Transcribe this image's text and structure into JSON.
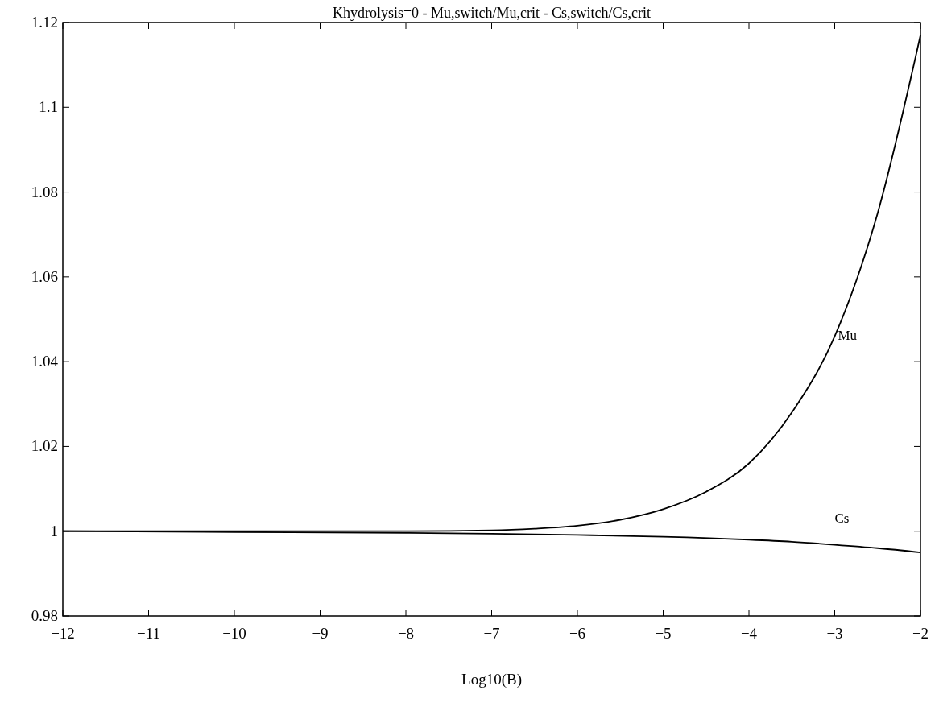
{
  "chart_data": {
    "type": "line",
    "title": "Khydrolysis=0 - Mu,switch/Mu,crit - Cs,switch/Cs,crit",
    "xlabel": "Log10(B)",
    "xlim": [
      -12,
      -2
    ],
    "xticks": [
      -12,
      -11,
      -10,
      -9,
      -8,
      -7,
      -6,
      -5,
      -4,
      -3,
      -2
    ],
    "ylim": [
      0.98,
      1.12
    ],
    "yticks": [
      0.98,
      1,
      1.02,
      1.04,
      1.06,
      1.08,
      1.1,
      1.12
    ],
    "grid": false,
    "marker": "none",
    "line_style": "solid",
    "series": [
      {
        "name": "Mu",
        "color": "#000000",
        "x": [
          -12,
          -10,
          -8,
          -7,
          -6.5,
          -6,
          -5.5,
          -5,
          -4.5,
          -4,
          -3.5,
          -3,
          -2.5,
          -2
        ],
        "values": [
          1,
          1,
          1,
          1.0002,
          1.0006,
          1.0013,
          1.0027,
          1.0052,
          1.0093,
          1.016,
          1.028,
          1.046,
          1.075,
          1.117
        ]
      },
      {
        "name": "Cs",
        "color": "#000000",
        "x": [
          -12,
          -10,
          -8,
          -7,
          -6,
          -5,
          -4,
          -3.5,
          -3,
          -2.5,
          -2
        ],
        "values": [
          1,
          0.9998,
          0.9996,
          0.9994,
          0.9991,
          0.9987,
          0.998,
          0.9975,
          0.9968,
          0.996,
          0.995
        ]
      }
    ]
  }
}
